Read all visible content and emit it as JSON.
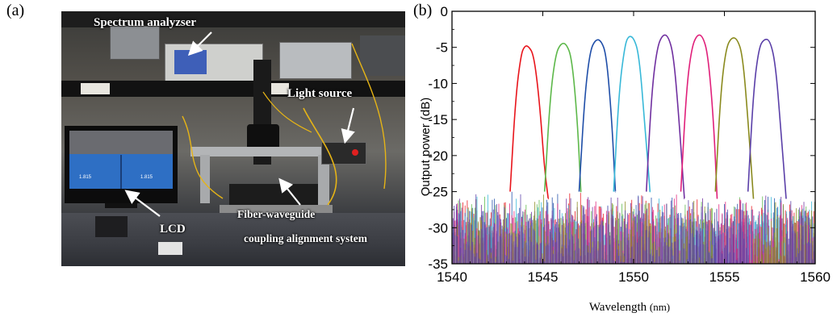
{
  "panels": {
    "a": "(a)",
    "b": "(b)"
  },
  "photo": {
    "labels": {
      "spectrum": "Spectrum analyzser",
      "light": "Light source",
      "lcd": "LCD",
      "fiber1": "Fiber-waveguide",
      "fiber2": "coupling alignment system"
    },
    "lcd_screen": {
      "left_value": "1.815",
      "right_value": "1.815"
    }
  },
  "chart_data": {
    "type": "line",
    "xlabel": "Wavelength",
    "xlabel_unit": "(nm)",
    "ylabel": "Output power (dB)",
    "xlim": [
      1540,
      1560
    ],
    "ylim": [
      -35,
      0
    ],
    "xticks": [
      1540,
      1545,
      1550,
      1555,
      1560
    ],
    "yticks": [
      0,
      -5,
      -10,
      -15,
      -20,
      -25,
      -30,
      -35
    ],
    "noise_floor_range": [
      -35,
      -25
    ],
    "series": [
      {
        "color": "#e8141b",
        "x": [
          1543.2,
          1543.5,
          1543.8,
          1544.0,
          1544.2,
          1544.5,
          1544.8,
          1545.1,
          1545.3
        ],
        "y": [
          -25,
          -12,
          -6,
          -4.8,
          -4.8,
          -6,
          -12,
          -22,
          -26
        ]
      },
      {
        "color": "#5db84a",
        "x": [
          1545.1,
          1545.4,
          1545.7,
          1546.0,
          1546.3,
          1546.6,
          1546.9,
          1547.1
        ],
        "y": [
          -25,
          -12,
          -6,
          -4.4,
          -4.5,
          -6.5,
          -15,
          -25
        ]
      },
      {
        "color": "#1f4ea8",
        "x": [
          1547.0,
          1547.3,
          1547.6,
          1547.9,
          1548.2,
          1548.5,
          1548.8,
          1549.0
        ],
        "y": [
          -25,
          -12,
          -5.5,
          -3.9,
          -4.0,
          -6,
          -15,
          -25
        ]
      },
      {
        "color": "#38b8d8",
        "x": [
          1548.9,
          1549.2,
          1549.5,
          1549.7,
          1550.0,
          1550.3,
          1550.6,
          1550.9
        ],
        "y": [
          -25,
          -11,
          -5,
          -3.4,
          -3.6,
          -6,
          -15,
          -25
        ]
      },
      {
        "color": "#7030a0",
        "x": [
          1550.7,
          1551.0,
          1551.3,
          1551.6,
          1551.9,
          1552.2,
          1552.5,
          1552.8
        ],
        "y": [
          -25,
          -11,
          -5,
          -3.2,
          -3.4,
          -6,
          -15,
          -26
        ]
      },
      {
        "color": "#e0207a",
        "x": [
          1552.6,
          1552.9,
          1553.2,
          1553.5,
          1553.8,
          1554.1,
          1554.4,
          1554.6
        ],
        "y": [
          -25,
          -11,
          -5,
          -3.2,
          -3.4,
          -6,
          -15,
          -26
        ]
      },
      {
        "color": "#8a8a1e",
        "x": [
          1554.5,
          1554.8,
          1555.1,
          1555.4,
          1555.7,
          1556.0,
          1556.3,
          1556.6
        ],
        "y": [
          -25,
          -11,
          -5,
          -3.6,
          -3.8,
          -6,
          -15,
          -26
        ]
      },
      {
        "color": "#5a3fa8",
        "x": [
          1556.3,
          1556.6,
          1556.9,
          1557.2,
          1557.5,
          1557.8,
          1558.1,
          1558.4
        ],
        "y": [
          -25,
          -11,
          -5,
          -3.8,
          -4.0,
          -7,
          -16,
          -26
        ]
      }
    ]
  }
}
